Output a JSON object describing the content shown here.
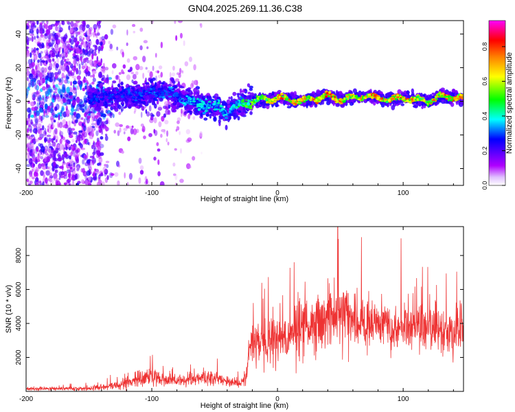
{
  "chart_data": [
    {
      "type": "heatmap",
      "title": "GN04.2025.269.11.36.C38",
      "xlabel": "Height of straight line (km)",
      "ylabel": "Frequency (Hz)",
      "xlim": [
        -200,
        148
      ],
      "ylim": [
        -50,
        48
      ],
      "xticks": [
        -200,
        -100,
        0,
        100
      ],
      "yticks": [
        -40,
        -20,
        0,
        20,
        40
      ],
      "xtick_labels": [
        "-200",
        "-100",
        "0",
        "100"
      ],
      "ytick_labels": [
        "-40",
        "-20",
        "0",
        "20",
        "40"
      ],
      "colorbar": {
        "label": "Normalized spectral amplitude",
        "range": [
          0,
          0.95
        ],
        "ticks": [
          0.0,
          0.2,
          0.4,
          0.6,
          0.8
        ],
        "tick_labels": [
          "0.0",
          "0.2",
          "0.4",
          "0.6",
          "0.8"
        ],
        "colormap": [
          "#ffffff",
          "#b000ff",
          "#5a00ff",
          "#0000ff",
          "#00ffff",
          "#00ff00",
          "#ffff00",
          "#ff8000",
          "#ff0000",
          "#ff00ff"
        ]
      },
      "ridge": {
        "x": [
          -148,
          -130,
          -110,
          -100,
          -90,
          -80,
          -70,
          -60,
          -50,
          -40,
          -35,
          -30,
          -20,
          -10,
          0,
          10,
          20,
          30,
          40,
          50,
          60,
          70,
          80,
          90,
          100,
          110,
          120,
          130,
          148
        ],
        "freq": [
          2,
          3,
          4,
          5,
          6,
          3,
          0,
          -2,
          -3,
          -6,
          -4,
          -2,
          0,
          1,
          2,
          1,
          0,
          2,
          3,
          1,
          2,
          3,
          2,
          1,
          2,
          1,
          0,
          3,
          2
        ],
        "peak_amplitude": [
          0.28,
          0.3,
          0.3,
          0.32,
          0.35,
          0.35,
          0.4,
          0.42,
          0.45,
          0.4,
          0.45,
          0.5,
          0.6,
          0.75,
          0.85,
          0.8,
          0.75,
          0.8,
          0.85,
          0.8,
          0.7,
          0.8,
          0.85,
          0.8,
          0.85,
          0.8,
          0.75,
          0.85,
          0.8
        ]
      },
      "noise_region": {
        "x_range": [
          -200,
          -140
        ],
        "freq_range": [
          -50,
          48
        ],
        "amplitude": 0.08
      }
    },
    {
      "type": "line",
      "xlabel": "Height of straight line (km)",
      "ylabel": "SNR (10 * v/v)",
      "xlim": [
        -200,
        148
      ],
      "ylim": [
        0,
        9700
      ],
      "xticks": [
        -200,
        -100,
        0,
        100
      ],
      "yticks": [
        2000,
        4000,
        6000,
        8000
      ],
      "xtick_labels": [
        "-200",
        "-100",
        "0",
        "100"
      ],
      "ytick_labels": [
        "2000",
        "4000",
        "6000",
        "8000"
      ],
      "color": "#ee3333",
      "envelope": {
        "x": [
          -200,
          -190,
          -170,
          -150,
          -140,
          -130,
          -120,
          -110,
          -100,
          -90,
          -80,
          -70,
          -60,
          -50,
          -40,
          -30,
          -25,
          -22,
          -20,
          -15,
          -10,
          0,
          10,
          20,
          30,
          40,
          50,
          60,
          70,
          80,
          90,
          100,
          110,
          120,
          130,
          140,
          148
        ],
        "mean": [
          180,
          150,
          150,
          160,
          250,
          350,
          450,
          750,
          900,
          650,
          600,
          700,
          800,
          750,
          650,
          500,
          700,
          2500,
          2700,
          2900,
          3000,
          3200,
          3400,
          3600,
          3900,
          4200,
          4300,
          4200,
          4100,
          3900,
          3800,
          3900,
          3800,
          3900,
          3700,
          3400,
          3700
        ],
        "amplitude": [
          120,
          120,
          120,
          150,
          250,
          300,
          350,
          550,
          600,
          450,
          400,
          450,
          500,
          500,
          400,
          350,
          500,
          1200,
          1400,
          1500,
          1600,
          1700,
          1800,
          1900,
          2000,
          2100,
          2300,
          2100,
          1900,
          1800,
          1800,
          1900,
          1800,
          1800,
          1800,
          1700,
          1400
        ]
      },
      "peak": {
        "x": 48,
        "y": 9700
      }
    }
  ]
}
